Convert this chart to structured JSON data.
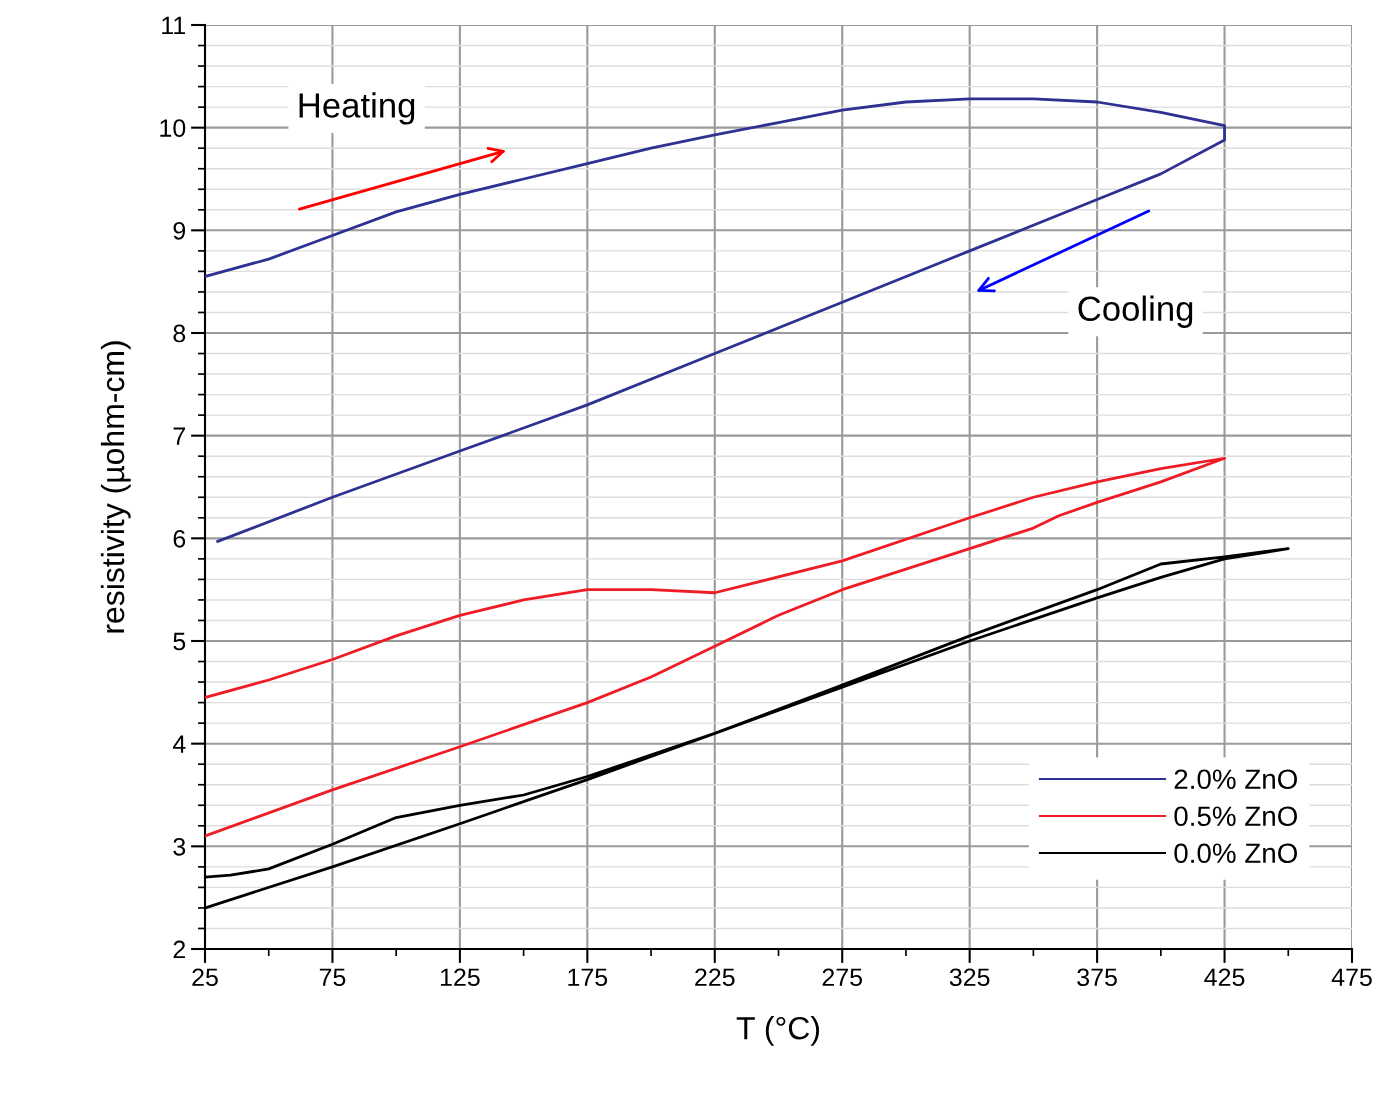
{
  "chart_data": {
    "type": "line",
    "xlabel": "T (°C)",
    "ylabel": "resistivity (µohm-cm)",
    "xlim": [
      25,
      475
    ],
    "xticks": [
      25,
      75,
      125,
      175,
      225,
      275,
      325,
      375,
      425,
      475
    ],
    "ylim": [
      2,
      11
    ],
    "yticks": [
      2,
      3,
      4,
      5,
      6,
      7,
      8,
      9,
      10,
      11
    ],
    "grid": true,
    "legend": "bottom right",
    "line_style": "solid",
    "marker": "none",
    "annotations": [
      "Heating",
      "Cooling"
    ],
    "series": [
      {
        "name": "2.0% ZnO",
        "color": "#2e3192",
        "x": [
          25,
          50,
          75,
          100,
          125,
          150,
          175,
          200,
          225,
          250,
          275,
          300,
          325,
          350,
          375,
          400,
          425,
          425,
          400,
          375,
          325,
          275,
          225,
          175,
          125,
          75,
          30
        ],
        "values": [
          8.55,
          8.72,
          8.95,
          9.18,
          9.35,
          9.5,
          9.65,
          9.8,
          9.93,
          10.05,
          10.17,
          10.25,
          10.28,
          10.28,
          10.25,
          10.15,
          10.02,
          9.88,
          9.55,
          9.3,
          8.8,
          8.3,
          7.8,
          7.3,
          6.85,
          6.4,
          5.97
        ]
      },
      {
        "name": "0.5% ZnO",
        "color": "#ee1c25",
        "x": [
          25,
          75,
          125,
          175,
          200,
          225,
          250,
          275,
          300,
          325,
          350,
          360,
          375,
          400,
          425,
          400,
          375,
          350,
          325,
          275,
          225,
          200,
          175,
          150,
          125,
          100,
          75,
          50,
          25
        ],
        "values": [
          3.1,
          3.55,
          3.97,
          4.4,
          4.65,
          4.95,
          5.25,
          5.5,
          5.7,
          5.9,
          6.1,
          6.22,
          6.35,
          6.55,
          6.78,
          6.68,
          6.55,
          6.4,
          6.2,
          5.78,
          5.47,
          5.5,
          5.5,
          5.4,
          5.25,
          5.05,
          4.82,
          4.62,
          4.45
        ]
      },
      {
        "name": "0.0% ZnO",
        "color": "#000000",
        "x": [
          25,
          75,
          125,
          175,
          225,
          275,
          325,
          375,
          400,
          425,
          450,
          425,
          400,
          375,
          325,
          275,
          225,
          175,
          150,
          125,
          100,
          75,
          50,
          35,
          25
        ],
        "values": [
          2.4,
          2.8,
          3.22,
          3.65,
          4.1,
          4.55,
          5.0,
          5.42,
          5.62,
          5.8,
          5.9,
          5.82,
          5.75,
          5.5,
          5.05,
          4.57,
          4.1,
          3.68,
          3.5,
          3.4,
          3.28,
          3.02,
          2.78,
          2.72,
          2.7
        ]
      }
    ]
  }
}
